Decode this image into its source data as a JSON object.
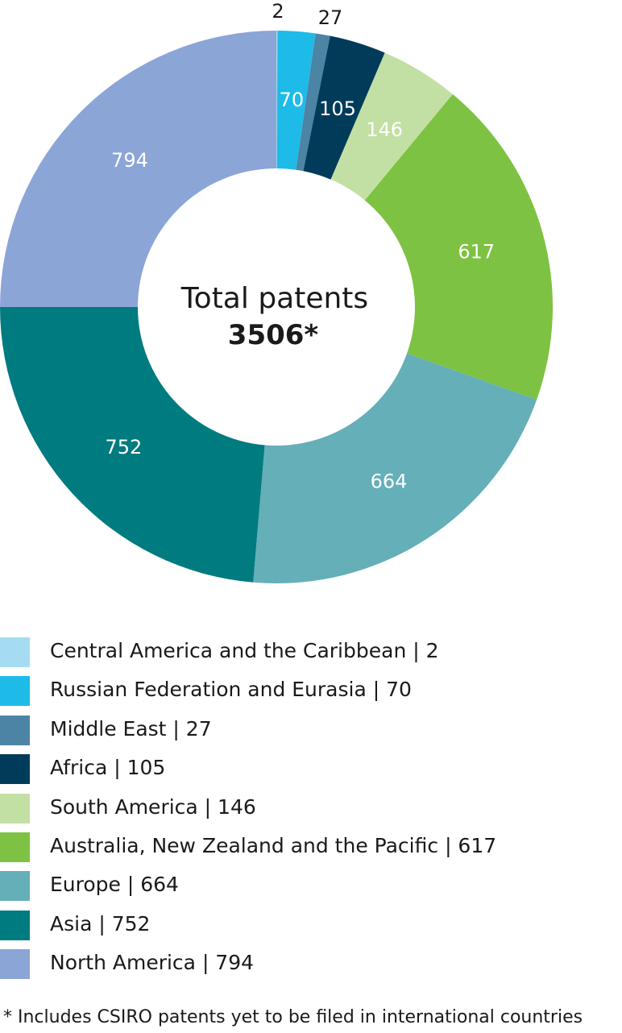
{
  "chart_data": {
    "type": "pie",
    "donut": true,
    "center_text": {
      "line1": "Total patents",
      "line2": "3506*"
    },
    "slices": [
      {
        "label": "Central America and the Caribbean | 2",
        "value": 2,
        "color": "#a6dcf3"
      },
      {
        "label": "Russian Federation and Eurasia | 70",
        "value": 70,
        "color": "#1ebbe9"
      },
      {
        "label": "Middle East | 27",
        "value": 27,
        "color": "#4b84a5"
      },
      {
        "label": "Africa | 105",
        "value": 105,
        "color": "#003c5a"
      },
      {
        "label": "South America | 146",
        "value": 146,
        "color": "#c3e0a4"
      },
      {
        "label": "Australia, New Zealand and the Pacific | 617",
        "value": 617,
        "color": "#7dc242"
      },
      {
        "label": "Europe | 664",
        "value": 664,
        "color": "#65afb9"
      },
      {
        "label": "Asia | 752",
        "value": 752,
        "color": "#007b7f"
      },
      {
        "label": "North America | 794",
        "value": 794,
        "color": "#8ba5d7"
      }
    ],
    "footnote": "* Includes CSIRO patents yet to be filed in international countries"
  }
}
